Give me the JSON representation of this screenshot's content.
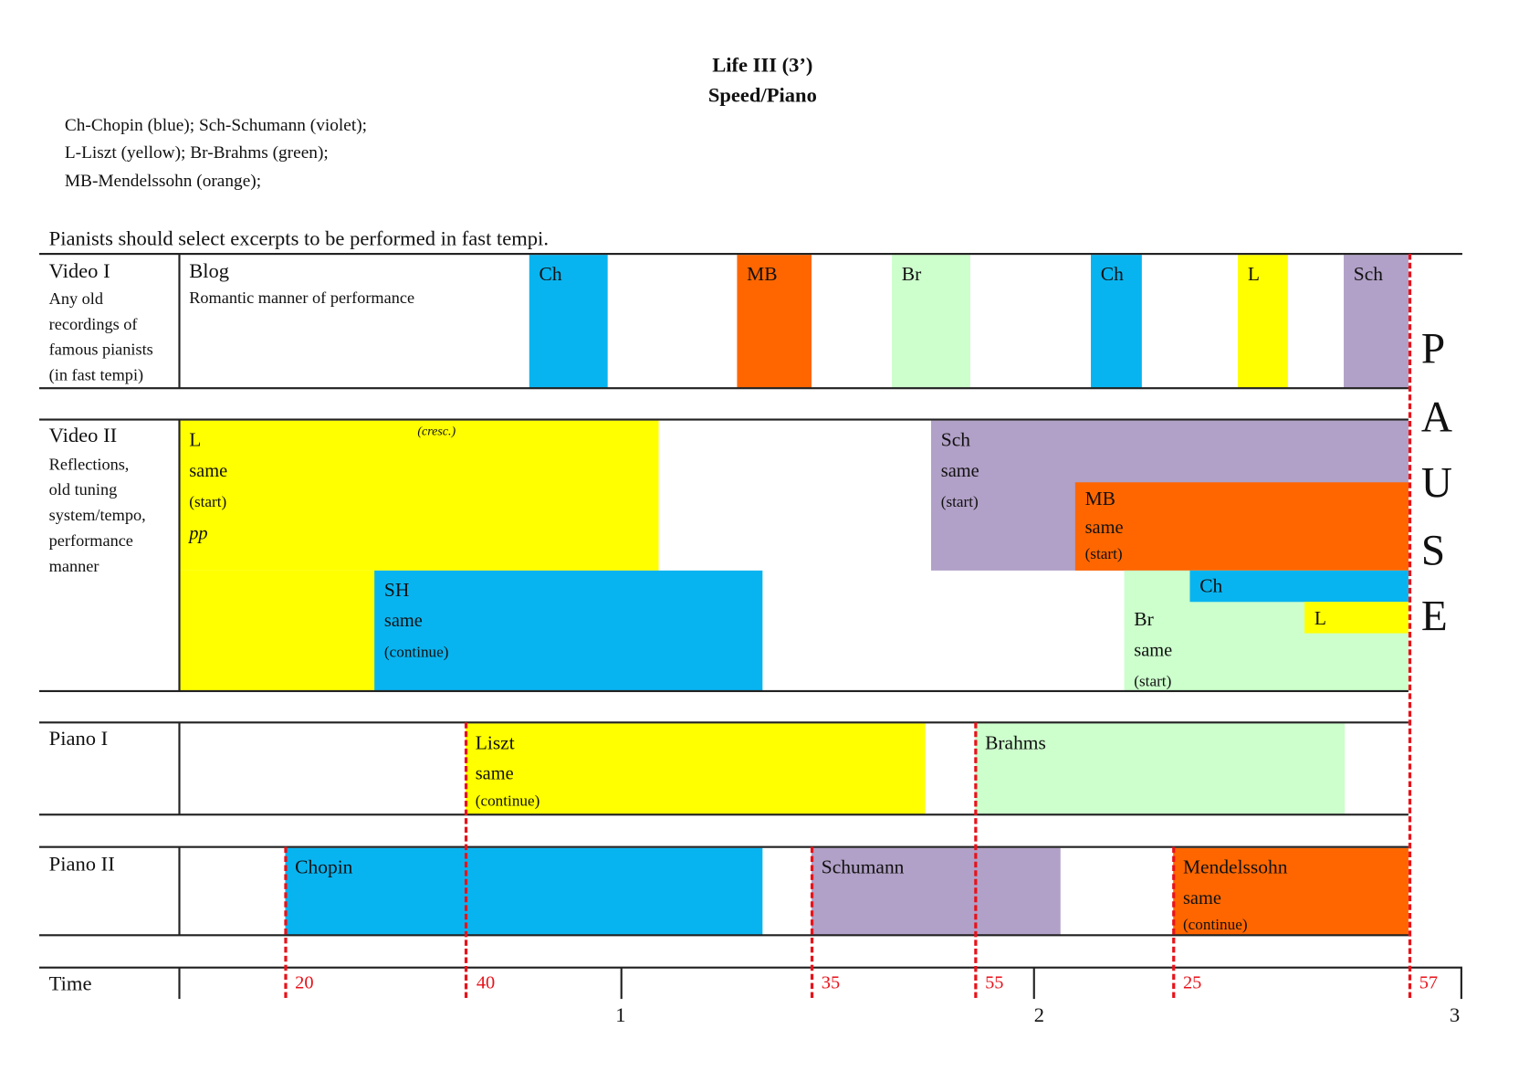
{
  "title": "Life III (3’)",
  "subtitle": "Speed/Piano",
  "legend": [
    "Ch-Chopin (blue); Sch-Schumann (violet);",
    "L-Liszt (yellow); Br-Brahms (green);",
    "MB-Mendelssohn (orange);"
  ],
  "instruction": "Pianists should select excerpts to be performed in fast tempi.",
  "colors": {
    "chopin": "#08b4f0",
    "schumann": "#b1a0c7",
    "liszt": "#ffff00",
    "brahms": "#ccffcc",
    "mendelssohn": "#ff6600",
    "markers": "#e8121a"
  },
  "video1": {
    "label": "Video I",
    "desc": [
      "Any old",
      "recordings of",
      "famous pianists",
      "(in fast tempi)"
    ],
    "blog": "Blog",
    "blog_desc": "Romantic manner of performance",
    "bars": [
      "Ch",
      "MB",
      "Br",
      "Ch",
      "L",
      "Sch"
    ]
  },
  "video2": {
    "label": "Video II",
    "desc": [
      "Reflections,",
      "old tuning",
      "system/tempo,",
      "performance",
      "manner"
    ],
    "l": {
      "name": "L",
      "same": "same",
      "note": "(start)",
      "dyn": "pp",
      "cresc": "(cresc.)"
    },
    "sh": {
      "name": "SH",
      "same": "same",
      "note": "(continue)"
    },
    "sch": {
      "name": "Sch",
      "same": "same",
      "note": "(start)"
    },
    "mb": {
      "name": "MB",
      "same": "same",
      "note": "(start)"
    },
    "ch": {
      "name": "Ch"
    },
    "l2": {
      "name": "L"
    },
    "br": {
      "name": "Br",
      "same": "same",
      "note": "(start)"
    }
  },
  "piano1": {
    "label": "Piano I",
    "liszt": {
      "name": "Liszt",
      "same": "same",
      "note": "(continue)"
    },
    "brahms": {
      "name": "Brahms"
    }
  },
  "piano2": {
    "label": "Piano II",
    "chopin": {
      "name": "Chopin"
    },
    "schumann": {
      "name": "Schumann"
    },
    "mendelssohn": {
      "name": "Mendelssohn",
      "same": "same",
      "note": "(continue)"
    }
  },
  "time": {
    "label": "Time",
    "markers": [
      "20",
      "40",
      "35",
      "55",
      "25",
      "57"
    ],
    "minutes": [
      "1",
      "2",
      "3"
    ]
  },
  "pause": [
    "P",
    "A",
    "U",
    "S",
    "E"
  ]
}
